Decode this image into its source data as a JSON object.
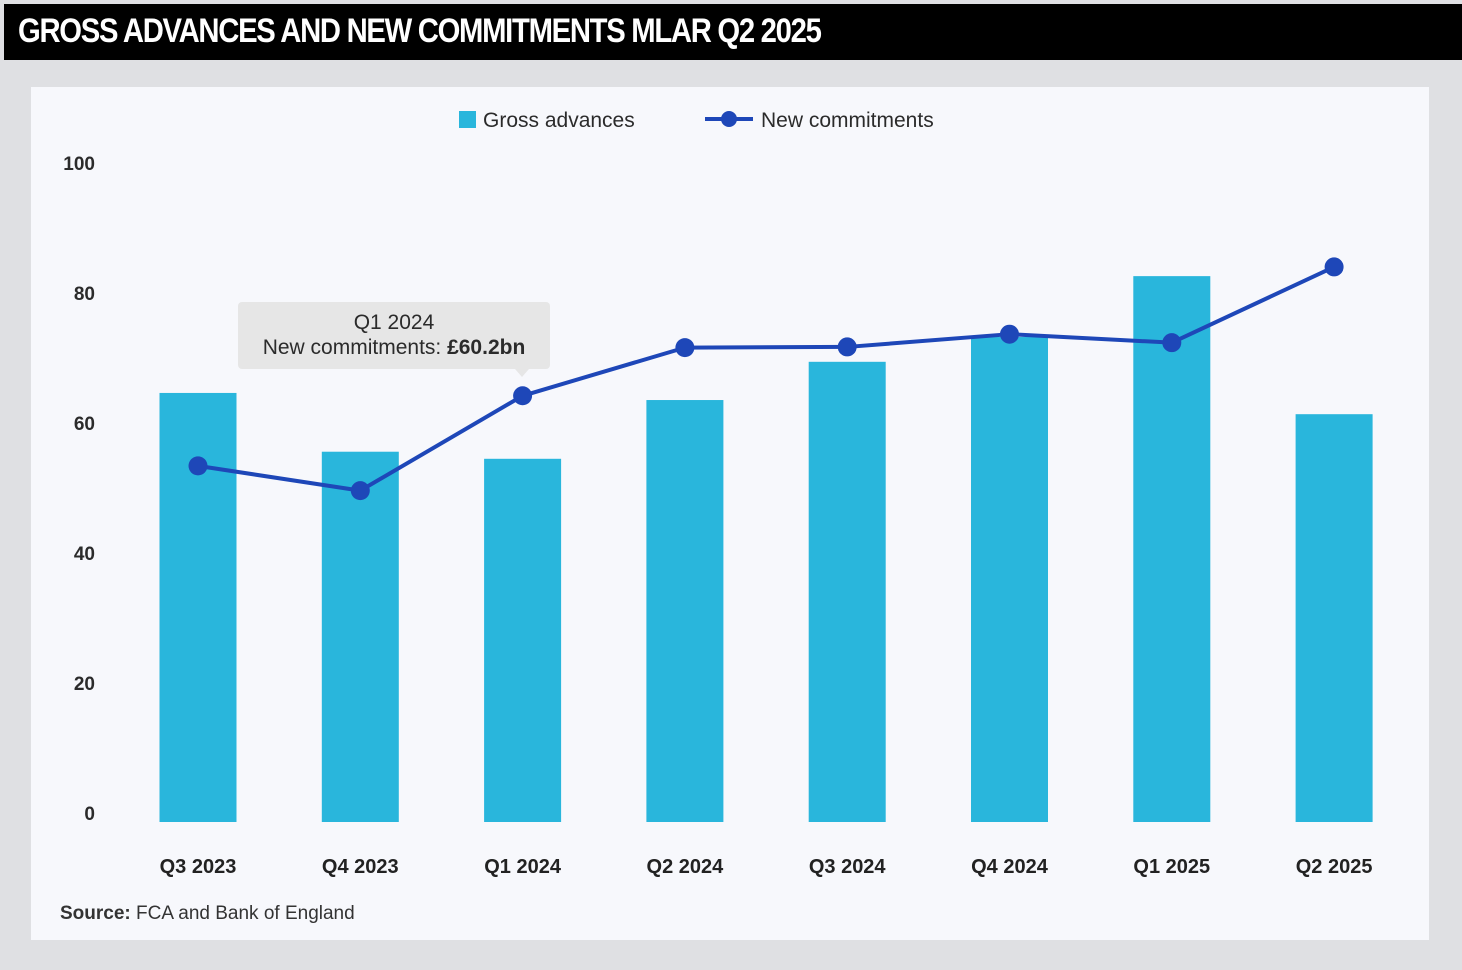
{
  "header": {
    "title": "GROSS ADVANCES AND NEW COMMITMENTS MLAR Q2 2025"
  },
  "colors": {
    "bar": "#29b6dc",
    "line": "#1e47b8",
    "title_bg": "#000000",
    "panel_bg": "#f7f8fc",
    "tooltip_bg": "#e6e6e6"
  },
  "tooltip": {
    "title": "Q1 2024",
    "label": "New commitments: ",
    "value": "£60.2bn"
  },
  "source": {
    "label": "Source:",
    "text": " FCA and Bank of England"
  },
  "chart_data": {
    "type": "bar",
    "title": "GROSS ADVANCES AND NEW COMMITMENTS MLAR Q2 2025",
    "xlabel": "",
    "ylabel": "",
    "ylim": [
      0,
      100
    ],
    "yticks": [
      "0",
      "20",
      "40",
      "60",
      "80",
      "100"
    ],
    "grid": false,
    "legend_position": "top-center",
    "categories": [
      "Q3 2023",
      "Q4 2023",
      "Q1 2024",
      "Q2 2024",
      "Q3 2024",
      "Q4 2024",
      "Q1 2025",
      "Q2 2025"
    ],
    "series": [
      {
        "name": "Gross advances",
        "type": "bar",
        "values": [
          60.6,
          52.3,
          51.3,
          59.6,
          65.0,
          68.5,
          77.1,
          57.6
        ]
      },
      {
        "name": "New commitments",
        "type": "line",
        "values": [
          50.3,
          46.8,
          60.2,
          67.0,
          67.1,
          68.9,
          67.7,
          78.4
        ]
      }
    ],
    "annotations": [
      {
        "category": "Q1 2024",
        "series": "New commitments",
        "text": "Q1 2024 New commitments: £60.2bn"
      }
    ]
  }
}
